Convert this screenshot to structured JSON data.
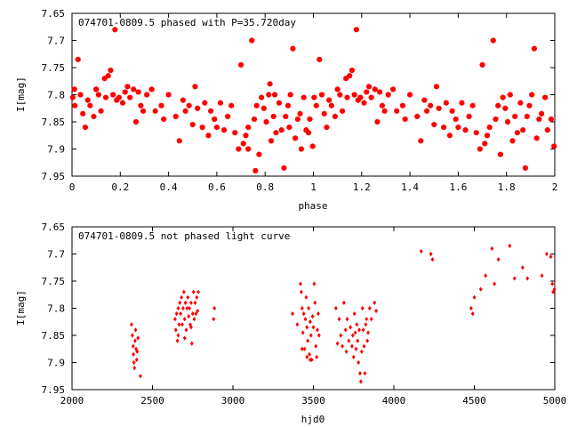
{
  "chart_data": [
    {
      "type": "scatter",
      "title": "074701-0809.5 phased with P=35.720day",
      "xlabel": "phase",
      "ylabel": "I[mag]",
      "xlim": [
        0,
        2
      ],
      "ylim": [
        7.95,
        7.65
      ],
      "y_inverted": true,
      "xticks": [
        "0",
        "0.2",
        "0.4",
        "0.6",
        "0.8",
        "1",
        "1.2",
        "1.4",
        "1.6",
        "1.8",
        "2"
      ],
      "yticks": [
        "7.65",
        "7.7",
        "7.75",
        "7.8",
        "7.85",
        "7.9",
        "7.95"
      ],
      "marker": "filled-circle",
      "color": "#ff0000",
      "base_points": [
        [
          0.003,
          7.805
        ],
        [
          0.012,
          7.82
        ],
        [
          0.025,
          7.735
        ],
        [
          0.035,
          7.8
        ],
        [
          0.045,
          7.835
        ],
        [
          0.055,
          7.86
        ],
        [
          0.065,
          7.81
        ],
        [
          0.075,
          7.82
        ],
        [
          0.09,
          7.84
        ],
        [
          0.1,
          7.79
        ],
        [
          0.11,
          7.8
        ],
        [
          0.12,
          7.83
        ],
        [
          0.135,
          7.77
        ],
        [
          0.14,
          7.805
        ],
        [
          0.15,
          7.765
        ],
        [
          0.16,
          7.755
        ],
        [
          0.17,
          7.8
        ],
        [
          0.178,
          7.68
        ],
        [
          0.185,
          7.81
        ],
        [
          0.195,
          7.805
        ],
        [
          0.21,
          7.815
        ],
        [
          0.22,
          7.795
        ],
        [
          0.23,
          7.785
        ],
        [
          0.24,
          7.805
        ],
        [
          0.255,
          7.79
        ],
        [
          0.265,
          7.85
        ],
        [
          0.275,
          7.795
        ],
        [
          0.285,
          7.82
        ],
        [
          0.295,
          7.83
        ],
        [
          0.31,
          7.8
        ],
        [
          0.33,
          7.79
        ],
        [
          0.345,
          7.83
        ],
        [
          0.37,
          7.82
        ],
        [
          0.38,
          7.845
        ],
        [
          0.4,
          7.8
        ],
        [
          0.43,
          7.84
        ],
        [
          0.445,
          7.885
        ],
        [
          0.46,
          7.81
        ],
        [
          0.47,
          7.83
        ],
        [
          0.485,
          7.82
        ],
        [
          0.5,
          7.855
        ],
        [
          0.51,
          7.785
        ],
        [
          0.52,
          7.825
        ],
        [
          0.54,
          7.86
        ],
        [
          0.55,
          7.815
        ],
        [
          0.565,
          7.875
        ],
        [
          0.575,
          7.83
        ],
        [
          0.59,
          7.845
        ],
        [
          0.6,
          7.86
        ],
        [
          0.615,
          7.815
        ],
        [
          0.63,
          7.865
        ],
        [
          0.645,
          7.84
        ],
        [
          0.66,
          7.82
        ],
        [
          0.675,
          7.87
        ],
        [
          0.69,
          7.9
        ],
        [
          0.7,
          7.745
        ],
        [
          0.71,
          7.89
        ],
        [
          0.72,
          7.875
        ],
        [
          0.73,
          7.86
        ],
        [
          0.745,
          7.7
        ],
        [
          0.755,
          7.845
        ],
        [
          0.765,
          7.82
        ],
        [
          0.775,
          7.91
        ],
        [
          0.785,
          7.805
        ],
        [
          0.795,
          7.825
        ],
        [
          0.805,
          7.85
        ],
        [
          0.815,
          7.8
        ],
        [
          0.825,
          7.885
        ],
        [
          0.835,
          7.84
        ],
        [
          0.845,
          7.87
        ],
        [
          0.858,
          7.815
        ],
        [
          0.868,
          7.865
        ],
        [
          0.878,
          7.935
        ],
        [
          0.885,
          7.84
        ],
        [
          0.895,
          7.82
        ],
        [
          0.905,
          7.8
        ],
        [
          0.915,
          7.715
        ],
        [
          0.925,
          7.88
        ],
        [
          0.935,
          7.845
        ],
        [
          0.945,
          7.835
        ],
        [
          0.96,
          7.805
        ],
        [
          0.97,
          7.865
        ],
        [
          0.985,
          7.845
        ],
        [
          0.997,
          7.895
        ]
      ],
      "extra_points": [
        [
          0.01,
          7.79
        ],
        [
          0.1,
          7.79
        ],
        [
          0.73,
          7.9
        ],
        [
          0.76,
          7.94
        ],
        [
          0.82,
          7.78
        ],
        [
          0.84,
          7.8
        ],
        [
          0.9,
          7.86
        ],
        [
          0.95,
          7.9
        ],
        [
          0.98,
          7.87
        ]
      ]
    },
    {
      "type": "scatter",
      "title": "074701-0809.5 not phased light curve",
      "xlabel": "hjd0",
      "ylabel": "I[mag]",
      "xlim": [
        2000,
        5000
      ],
      "ylim": [
        7.95,
        7.65
      ],
      "y_inverted": true,
      "xticks": [
        "2000",
        "2500",
        "3000",
        "3500",
        "4000",
        "4500",
        "5000"
      ],
      "yticks": [
        "7.65",
        "7.7",
        "7.75",
        "7.8",
        "7.85",
        "7.9",
        "7.95"
      ],
      "marker": "small-diamond",
      "color": "#ff0000",
      "points": [
        [
          2370,
          7.83
        ],
        [
          2375,
          7.85
        ],
        [
          2380,
          7.87
        ],
        [
          2382,
          7.885
        ],
        [
          2385,
          7.9
        ],
        [
          2388,
          7.91
        ],
        [
          2392,
          7.86
        ],
        [
          2395,
          7.84
        ],
        [
          2398,
          7.875
        ],
        [
          2402,
          7.895
        ],
        [
          2405,
          7.88
        ],
        [
          2410,
          7.855
        ],
        [
          2425,
          7.925
        ],
        [
          2640,
          7.82
        ],
        [
          2645,
          7.84
        ],
        [
          2650,
          7.81
        ],
        [
          2655,
          7.86
        ],
        [
          2660,
          7.8
        ],
        [
          2665,
          7.83
        ],
        [
          2670,
          7.79
        ],
        [
          2675,
          7.81
        ],
        [
          2680,
          7.78
        ],
        [
          2685,
          7.83
        ],
        [
          2690,
          7.8
        ],
        [
          2695,
          7.77
        ],
        [
          2700,
          7.82
        ],
        [
          2705,
          7.79
        ],
        [
          2710,
          7.84
        ],
        [
          2715,
          7.8
        ],
        [
          2720,
          7.78
        ],
        [
          2725,
          7.815
        ],
        [
          2730,
          7.8
        ],
        [
          2735,
          7.83
        ],
        [
          2740,
          7.79
        ],
        [
          2745,
          7.865
        ],
        [
          2750,
          7.81
        ],
        [
          2755,
          7.77
        ],
        [
          2760,
          7.82
        ],
        [
          2765,
          7.79
        ],
        [
          2770,
          7.81
        ],
        [
          2775,
          7.78
        ],
        [
          2780,
          7.805
        ],
        [
          2785,
          7.77
        ],
        [
          2880,
          7.82
        ],
        [
          2885,
          7.8
        ],
        [
          2660,
          7.85
        ],
        [
          2700,
          7.855
        ],
        [
          2740,
          7.835
        ],
        [
          3370,
          7.81
        ],
        [
          3400,
          7.83
        ],
        [
          3420,
          7.755
        ],
        [
          3425,
          7.77
        ],
        [
          3430,
          7.8
        ],
        [
          3435,
          7.845
        ],
        [
          3440,
          7.81
        ],
        [
          3445,
          7.875
        ],
        [
          3450,
          7.82
        ],
        [
          3455,
          7.78
        ],
        [
          3460,
          7.835
        ],
        [
          3465,
          7.86
        ],
        [
          3470,
          7.8
        ],
        [
          3475,
          7.885
        ],
        [
          3480,
          7.825
        ],
        [
          3485,
          7.85
        ],
        [
          3490,
          7.895
        ],
        [
          3495,
          7.815
        ],
        [
          3500,
          7.835
        ],
        [
          3505,
          7.755
        ],
        [
          3510,
          7.79
        ],
        [
          3515,
          7.87
        ],
        [
          3520,
          7.89
        ],
        [
          3525,
          7.84
        ],
        [
          3530,
          7.81
        ],
        [
          3535,
          7.85
        ],
        [
          3430,
          7.875
        ],
        [
          3460,
          7.89
        ],
        [
          3480,
          7.895
        ],
        [
          3640,
          7.8
        ],
        [
          3650,
          7.865
        ],
        [
          3660,
          7.82
        ],
        [
          3670,
          7.85
        ],
        [
          3680,
          7.87
        ],
        [
          3690,
          7.79
        ],
        [
          3700,
          7.84
        ],
        [
          3705,
          7.88
        ],
        [
          3710,
          7.82
        ],
        [
          3720,
          7.86
        ],
        [
          3730,
          7.835
        ],
        [
          3740,
          7.87
        ],
        [
          3745,
          7.85
        ],
        [
          3750,
          7.89
        ],
        [
          3755,
          7.81
        ],
        [
          3760,
          7.845
        ],
        [
          3765,
          7.875
        ],
        [
          3770,
          7.83
        ],
        [
          3775,
          7.86
        ],
        [
          3780,
          7.9
        ],
        [
          3785,
          7.84
        ],
        [
          3790,
          7.92
        ],
        [
          3795,
          7.935
        ],
        [
          3800,
          7.88
        ],
        [
          3805,
          7.8
        ],
        [
          3810,
          7.84
        ],
        [
          3815,
          7.87
        ],
        [
          3820,
          7.92
        ],
        [
          3825,
          7.83
        ],
        [
          3830,
          7.82
        ],
        [
          3835,
          7.86
        ],
        [
          3840,
          7.845
        ],
        [
          3850,
          7.8
        ],
        [
          3860,
          7.82
        ],
        [
          3880,
          7.79
        ],
        [
          3890,
          7.805
        ],
        [
          4170,
          7.695
        ],
        [
          4230,
          7.7
        ],
        [
          4240,
          7.71
        ],
        [
          4480,
          7.8
        ],
        [
          4490,
          7.81
        ],
        [
          4500,
          7.78
        ],
        [
          4540,
          7.765
        ],
        [
          4570,
          7.74
        ],
        [
          4610,
          7.69
        ],
        [
          4625,
          7.755
        ],
        [
          4650,
          7.71
        ],
        [
          4720,
          7.685
        ],
        [
          4750,
          7.745
        ],
        [
          4800,
          7.725
        ],
        [
          4830,
          7.745
        ],
        [
          4920,
          7.74
        ],
        [
          4950,
          7.7
        ],
        [
          4975,
          7.705
        ],
        [
          4985,
          7.755
        ],
        [
          4990,
          7.77
        ],
        [
          4998,
          7.765
        ]
      ]
    }
  ]
}
